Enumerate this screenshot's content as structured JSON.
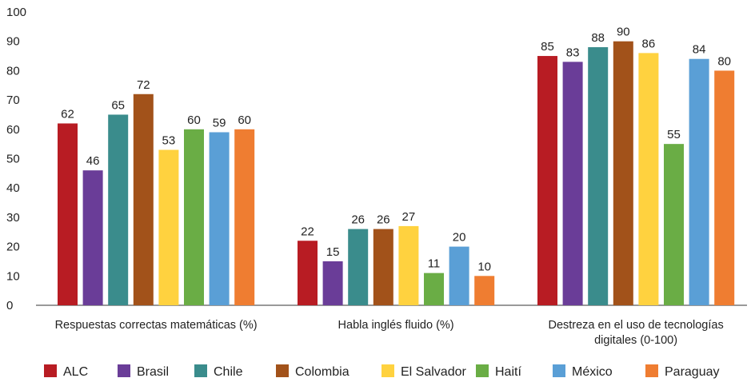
{
  "chart_data": {
    "type": "bar",
    "categories": [
      [
        "Respuestas correctas matemáticas (%)"
      ],
      [
        "Habla inglés fluido (%)"
      ],
      [
        "Destreza en el uso de tecnologías",
        "digitales (0-100)"
      ]
    ],
    "ylim": [
      0,
      100
    ],
    "yticks": [
      "0",
      "10",
      "20",
      "30",
      "40",
      "50",
      "60",
      "70",
      "80",
      "90",
      "100"
    ],
    "grid": false,
    "legend_position": "bottom",
    "series": [
      {
        "name": "ALC",
        "color": "#b81c23",
        "values": [
          62,
          22,
          85
        ]
      },
      {
        "name": "Brasil",
        "color": "#6a3d98",
        "values": [
          46,
          15,
          83
        ]
      },
      {
        "name": "Chile",
        "color": "#3a8c8c",
        "values": [
          65,
          26,
          88
        ]
      },
      {
        "name": "Colombia",
        "color": "#a2521a",
        "values": [
          72,
          26,
          90
        ]
      },
      {
        "name": "El Salvador",
        "color": "#ffd23f",
        "values": [
          53,
          27,
          86
        ]
      },
      {
        "name": "Haití",
        "color": "#6aad45",
        "values": [
          60,
          11,
          55
        ]
      },
      {
        "name": "México",
        "color": "#5a9fd6",
        "values": [
          59,
          20,
          84
        ]
      },
      {
        "name": "Paraguay",
        "color": "#ef7d31",
        "values": [
          60,
          10,
          80
        ]
      }
    ]
  }
}
